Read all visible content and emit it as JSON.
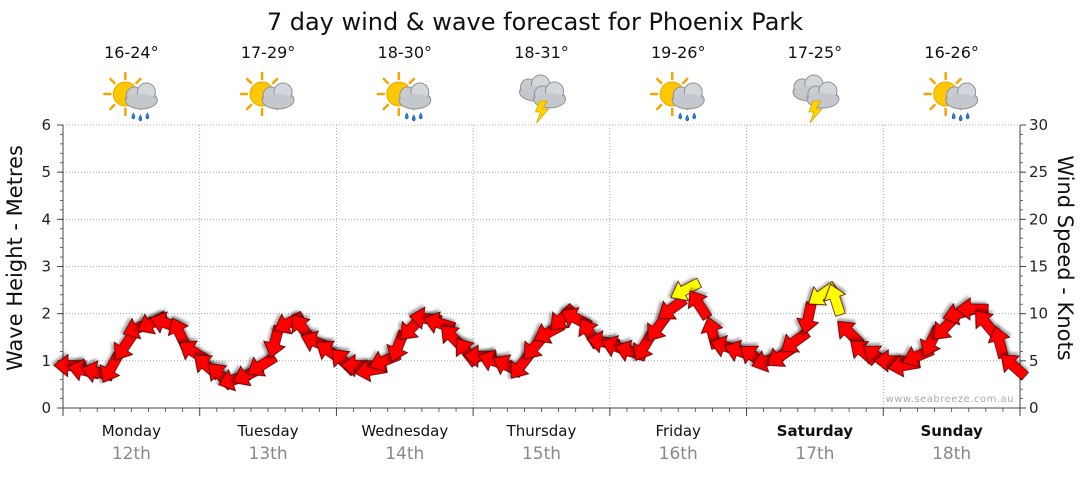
{
  "chart_data": {
    "type": "line",
    "title": "7 day wind & wave forecast for Phoenix Park",
    "ylabel_left": "Wave Height - Metres",
    "ylabel_right": "Wind Speed - Knots",
    "ylim_left": [
      0,
      6
    ],
    "ylim_right": [
      0,
      30
    ],
    "yticks_left": [
      "0",
      "1",
      "2",
      "3",
      "4",
      "5",
      "6"
    ],
    "yticks_right": [
      "0",
      "5",
      "10",
      "15",
      "20",
      "25",
      "30"
    ],
    "watermark": "www.seabreeze.com.au",
    "days": [
      {
        "name": "Monday",
        "date": "12th",
        "temp": "16-24°",
        "icon": "sun-cloud-rain-icon",
        "bold": false
      },
      {
        "name": "Tuesday",
        "date": "13th",
        "temp": "17-29°",
        "icon": "sun-cloud-icon",
        "bold": false
      },
      {
        "name": "Wednesday",
        "date": "14th",
        "temp": "18-30°",
        "icon": "sun-cloud-rain-icon",
        "bold": false
      },
      {
        "name": "Thursday",
        "date": "15th",
        "temp": "18-31°",
        "icon": "storm-cloud-icon",
        "bold": false
      },
      {
        "name": "Friday",
        "date": "16th",
        "temp": "19-26°",
        "icon": "sun-cloud-rain-icon",
        "bold": false
      },
      {
        "name": "Saturday",
        "date": "17th",
        "temp": "17-25°",
        "icon": "storm-cloud-icon",
        "bold": true
      },
      {
        "name": "Sunday",
        "date": "18th",
        "temp": "16-26°",
        "icon": "sun-cloud-rain-icon",
        "bold": true
      }
    ],
    "wind_series": {
      "name": "Wind Speed (knots)",
      "x_days": [
        0.0,
        0.1,
        0.2,
        0.3,
        0.4,
        0.5,
        0.6,
        0.7,
        0.8,
        0.9,
        1.0,
        1.1,
        1.2,
        1.3,
        1.4,
        1.5,
        1.6,
        1.7,
        1.8,
        1.9,
        2.0,
        2.1,
        2.2,
        2.3,
        2.4,
        2.5,
        2.6,
        2.7,
        2.8,
        2.9,
        3.0,
        3.1,
        3.2,
        3.3,
        3.4,
        3.5,
        3.6,
        3.7,
        3.8,
        3.9,
        4.0,
        4.1,
        4.2,
        4.3,
        4.4,
        4.5,
        4.6,
        4.7,
        4.8,
        4.9,
        5.0,
        5.1,
        5.2,
        5.3,
        5.4,
        5.5,
        5.6,
        5.7,
        5.8,
        5.9,
        6.0,
        6.1,
        6.2,
        6.3,
        6.4,
        6.5,
        6.6,
        6.7,
        6.8,
        6.9
      ],
      "speed_knots": [
        4.5,
        4.0,
        3.8,
        4.2,
        6.5,
        8.5,
        9.0,
        9.0,
        8.0,
        6.0,
        4.5,
        3.5,
        3.0,
        3.5,
        4.5,
        7.0,
        9.0,
        8.5,
        7.0,
        6.0,
        5.0,
        4.5,
        4.0,
        5.0,
        6.5,
        8.5,
        9.5,
        9.0,
        7.5,
        6.0,
        5.5,
        5.0,
        4.5,
        4.5,
        6.5,
        8.0,
        9.5,
        9.5,
        8.0,
        7.0,
        6.5,
        6.0,
        6.5,
        8.5,
        10.5,
        12.5,
        11.0,
        8.0,
        6.5,
        6.0,
        5.5,
        5.0,
        5.5,
        7.0,
        9.5,
        12.0,
        11.5,
        8.0,
        6.0,
        5.5,
        5.0,
        4.5,
        5.5,
        7.0,
        8.5,
        10.0,
        10.5,
        9.0,
        7.0,
        4.5
      ],
      "gust_warning_indices": [
        45,
        55,
        56
      ]
    },
    "colors": {
      "arrow_normal": "#ff0000",
      "arrow_warning": "#ffff00",
      "grid": "#999999",
      "axis": "#444444"
    }
  }
}
